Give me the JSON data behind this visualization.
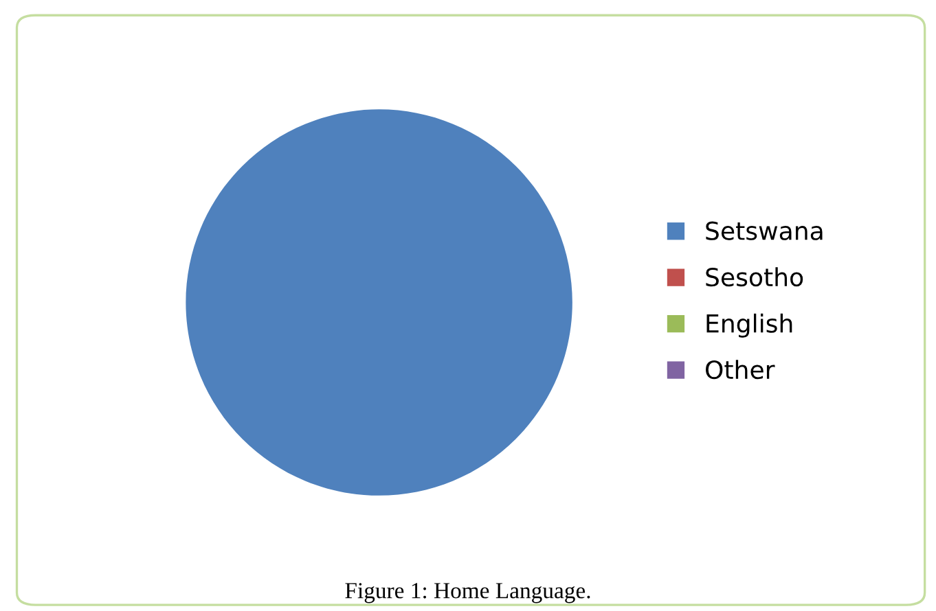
{
  "chart_data": {
    "type": "pie",
    "categories": [
      "Setswana",
      "Sesotho",
      "English",
      "Other"
    ],
    "values": [
      100,
      0,
      0,
      0
    ],
    "colors": [
      "#4f81bd",
      "#c0504d",
      "#9bbb59",
      "#8064a2"
    ],
    "legend": "right",
    "annotations": [
      "Figure 1: Home Language."
    ]
  }
}
